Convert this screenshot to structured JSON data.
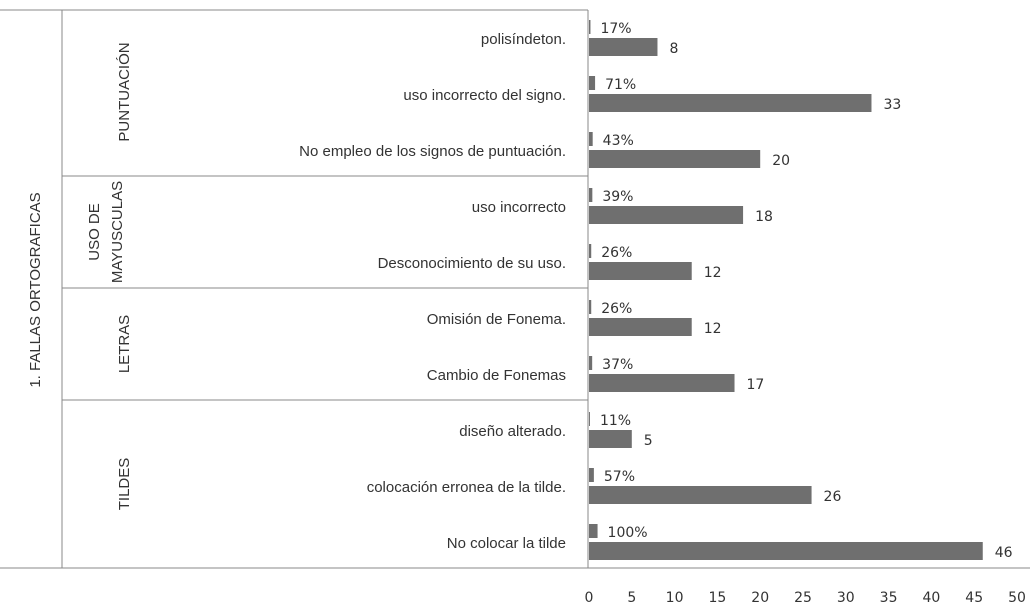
{
  "chart_data": {
    "type": "bar",
    "orientation": "horizontal",
    "outer_label": "1. FALLAS ORTOGRAFICAS",
    "groups": [
      {
        "label": [
          "PUNTUACIÓN"
        ],
        "categories": [
          "polisíndeton.",
          "uso incorrecto del signo.",
          "No empleo de los signos de puntuación."
        ]
      },
      {
        "label": [
          "USO DE",
          "MAYUSCULAS"
        ],
        "categories": [
          "uso incorrecto",
          "Desconocimiento de su uso."
        ]
      },
      {
        "label": [
          "LETRAS"
        ],
        "categories": [
          "Omisión de Fonema.",
          "Cambio de Fonemas"
        ]
      },
      {
        "label": [
          "TILDES"
        ],
        "categories": [
          "diseño alterado.",
          "colocación erronea de la tilde.",
          "No colocar la tilde"
        ]
      }
    ],
    "series": [
      {
        "color": "#6f6f6f",
        "values": [
          0.17,
          0.71,
          0.43,
          0.39,
          0.26,
          0.26,
          0.37,
          0.11,
          0.57,
          1.0
        ],
        "value_labels": [
          "17%",
          "71%",
          "43%",
          "39%",
          "26%",
          "26%",
          "37%",
          "11%",
          "57%",
          "100%"
        ]
      },
      {
        "color": "#6f6f6f",
        "values": [
          8,
          33,
          20,
          18,
          12,
          12,
          17,
          5,
          26,
          46
        ]
      }
    ],
    "xlim": [
      0,
      50
    ],
    "xticks": [
      0,
      5,
      10,
      15,
      20,
      25,
      30,
      35,
      40,
      45,
      50
    ]
  }
}
